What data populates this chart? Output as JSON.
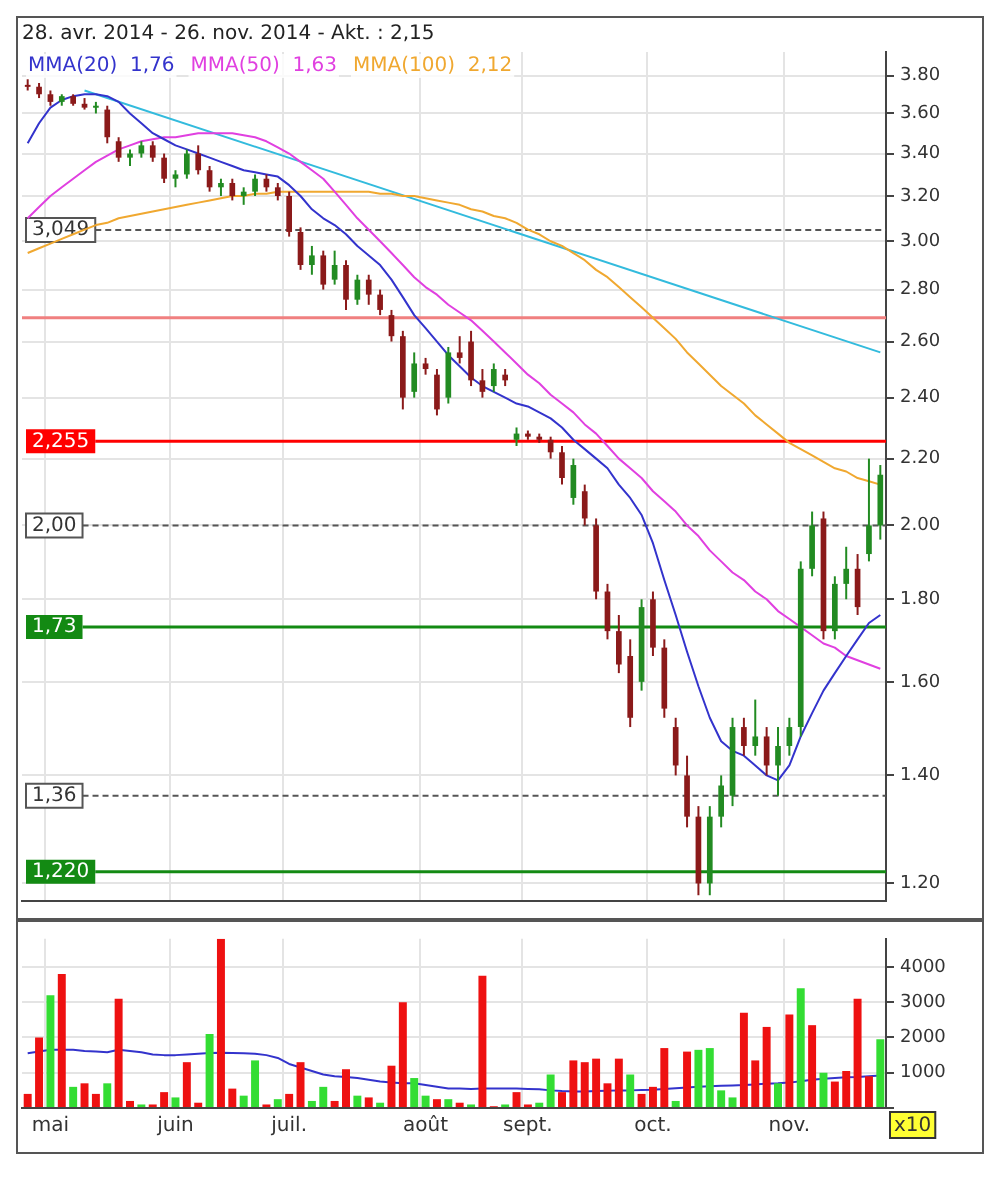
{
  "chart_data": [
    {
      "type": "candlestick",
      "title": "28. avr. 2014 - 26. nov. 2014 - Akt. : 2,15",
      "log": true,
      "grid": true,
      "legend": "top left",
      "tick_labels": "y",
      "ohlc": [
        [
          3.75,
          3.78,
          3.72,
          3.74
        ],
        [
          3.74,
          3.76,
          3.68,
          3.7
        ],
        [
          3.7,
          3.72,
          3.64,
          3.66
        ],
        [
          3.66,
          3.7,
          3.64,
          3.69
        ],
        [
          3.69,
          3.7,
          3.64,
          3.65
        ],
        [
          3.65,
          3.68,
          3.62,
          3.63
        ],
        [
          3.63,
          3.66,
          3.6,
          3.64
        ],
        [
          3.62,
          3.64,
          3.45,
          3.48
        ],
        [
          3.46,
          3.48,
          3.36,
          3.38
        ],
        [
          3.38,
          3.42,
          3.34,
          3.4
        ],
        [
          3.4,
          3.46,
          3.38,
          3.44
        ],
        [
          3.44,
          3.46,
          3.36,
          3.38
        ],
        [
          3.38,
          3.4,
          3.26,
          3.28
        ],
        [
          3.28,
          3.32,
          3.24,
          3.3
        ],
        [
          3.3,
          3.42,
          3.28,
          3.4
        ],
        [
          3.4,
          3.44,
          3.3,
          3.32
        ],
        [
          3.32,
          3.34,
          3.22,
          3.24
        ],
        [
          3.24,
          3.28,
          3.2,
          3.26
        ],
        [
          3.26,
          3.28,
          3.18,
          3.2
        ],
        [
          3.2,
          3.24,
          3.16,
          3.22
        ],
        [
          3.22,
          3.3,
          3.2,
          3.28
        ],
        [
          3.28,
          3.3,
          3.22,
          3.24
        ],
        [
          3.24,
          3.26,
          3.18,
          3.2
        ],
        [
          3.2,
          3.22,
          3.02,
          3.04
        ],
        [
          3.04,
          3.06,
          2.88,
          2.9
        ],
        [
          2.9,
          2.98,
          2.86,
          2.94
        ],
        [
          2.94,
          2.96,
          2.8,
          2.82
        ],
        [
          2.84,
          2.96,
          2.82,
          2.9
        ],
        [
          2.9,
          2.92,
          2.72,
          2.76
        ],
        [
          2.76,
          2.86,
          2.74,
          2.84
        ],
        [
          2.84,
          2.86,
          2.74,
          2.78
        ],
        [
          2.78,
          2.8,
          2.7,
          2.72
        ],
        [
          2.7,
          2.72,
          2.6,
          2.62
        ],
        [
          2.62,
          2.64,
          2.36,
          2.4
        ],
        [
          2.42,
          2.56,
          2.4,
          2.52
        ],
        [
          2.52,
          2.54,
          2.48,
          2.5
        ],
        [
          2.48,
          2.5,
          2.34,
          2.36
        ],
        [
          2.4,
          2.58,
          2.38,
          2.56
        ],
        [
          2.56,
          2.62,
          2.52,
          2.54
        ],
        [
          2.6,
          2.64,
          2.44,
          2.46
        ],
        [
          2.46,
          2.5,
          2.4,
          2.42
        ],
        [
          2.44,
          2.52,
          2.42,
          2.5
        ],
        [
          2.48,
          2.5,
          2.44,
          2.46
        ],
        [
          2.26,
          2.3,
          2.24,
          2.28
        ],
        [
          2.28,
          2.29,
          2.26,
          2.27
        ],
        [
          2.27,
          2.28,
          2.25,
          2.26
        ],
        [
          2.26,
          2.27,
          2.2,
          2.22
        ],
        [
          2.22,
          2.24,
          2.12,
          2.14
        ],
        [
          2.08,
          2.2,
          2.06,
          2.18
        ],
        [
          2.1,
          2.12,
          2.0,
          2.02
        ],
        [
          2.0,
          2.02,
          1.8,
          1.82
        ],
        [
          1.82,
          1.84,
          1.7,
          1.72
        ],
        [
          1.72,
          1.76,
          1.62,
          1.64
        ],
        [
          1.66,
          1.7,
          1.5,
          1.52
        ],
        [
          1.6,
          1.8,
          1.58,
          1.78
        ],
        [
          1.8,
          1.82,
          1.66,
          1.68
        ],
        [
          1.68,
          1.7,
          1.52,
          1.54
        ],
        [
          1.5,
          1.52,
          1.4,
          1.42
        ],
        [
          1.4,
          1.44,
          1.3,
          1.32
        ],
        [
          1.32,
          1.34,
          1.18,
          1.2
        ],
        [
          1.2,
          1.34,
          1.18,
          1.32
        ],
        [
          1.32,
          1.4,
          1.3,
          1.38
        ],
        [
          1.36,
          1.52,
          1.34,
          1.5
        ],
        [
          1.5,
          1.52,
          1.44,
          1.46
        ],
        [
          1.46,
          1.56,
          1.44,
          1.48
        ],
        [
          1.48,
          1.5,
          1.4,
          1.42
        ],
        [
          1.42,
          1.5,
          1.36,
          1.46
        ],
        [
          1.46,
          1.52,
          1.44,
          1.5
        ],
        [
          1.5,
          1.9,
          1.48,
          1.88
        ],
        [
          1.88,
          2.04,
          1.86,
          2.0
        ],
        [
          2.02,
          2.04,
          1.7,
          1.72
        ],
        [
          1.72,
          1.86,
          1.7,
          1.84
        ],
        [
          1.84,
          1.94,
          1.8,
          1.88
        ],
        [
          1.88,
          1.92,
          1.76,
          1.78
        ],
        [
          1.92,
          2.2,
          1.9,
          2.0
        ],
        [
          2.0,
          2.18,
          1.96,
          2.15
        ]
      ],
      "series": [
        {
          "type": "line",
          "name": "MMA(20)  1,76",
          "color": "#3333cc",
          "values": [
            3.45,
            3.55,
            3.63,
            3.67,
            3.69,
            3.7,
            3.7,
            3.69,
            3.66,
            3.6,
            3.55,
            3.5,
            3.47,
            3.44,
            3.42,
            3.4,
            3.38,
            3.36,
            3.34,
            3.32,
            3.31,
            3.3,
            3.29,
            3.25,
            3.2,
            3.14,
            3.1,
            3.07,
            3.03,
            2.98,
            2.94,
            2.9,
            2.84,
            2.77,
            2.7,
            2.65,
            2.6,
            2.55,
            2.51,
            2.47,
            2.44,
            2.42,
            2.4,
            2.38,
            2.37,
            2.35,
            2.33,
            2.3,
            2.26,
            2.23,
            2.2,
            2.17,
            2.12,
            2.08,
            2.03,
            1.95,
            1.85,
            1.76,
            1.67,
            1.59,
            1.52,
            1.47,
            1.45,
            1.44,
            1.42,
            1.4,
            1.39,
            1.42,
            1.48,
            1.53,
            1.58,
            1.62,
            1.66,
            1.7,
            1.74,
            1.76
          ]
        },
        {
          "type": "line",
          "name": "MMA(50)  1,63",
          "color": "#e040e0",
          "values": [
            3.1,
            3.15,
            3.2,
            3.24,
            3.28,
            3.32,
            3.36,
            3.39,
            3.42,
            3.44,
            3.46,
            3.47,
            3.48,
            3.48,
            3.49,
            3.5,
            3.5,
            3.5,
            3.5,
            3.49,
            3.48,
            3.46,
            3.43,
            3.4,
            3.36,
            3.32,
            3.28,
            3.22,
            3.16,
            3.1,
            3.05,
            3.0,
            2.95,
            2.9,
            2.85,
            2.81,
            2.78,
            2.74,
            2.71,
            2.68,
            2.64,
            2.6,
            2.56,
            2.52,
            2.48,
            2.45,
            2.41,
            2.38,
            2.35,
            2.31,
            2.28,
            2.24,
            2.2,
            2.17,
            2.14,
            2.1,
            2.07,
            2.04,
            2.0,
            1.97,
            1.93,
            1.9,
            1.87,
            1.85,
            1.82,
            1.8,
            1.77,
            1.75,
            1.73,
            1.71,
            1.69,
            1.68,
            1.66,
            1.65,
            1.64,
            1.63
          ]
        },
        {
          "type": "line",
          "name": "MMA(100)  2,12",
          "color": "#f0a830",
          "values": [
            2.95,
            2.97,
            2.99,
            3.01,
            3.03,
            3.05,
            3.07,
            3.08,
            3.1,
            3.11,
            3.12,
            3.13,
            3.14,
            3.15,
            3.16,
            3.17,
            3.18,
            3.19,
            3.2,
            3.2,
            3.21,
            3.21,
            3.22,
            3.22,
            3.22,
            3.22,
            3.22,
            3.22,
            3.22,
            3.22,
            3.22,
            3.21,
            3.21,
            3.2,
            3.2,
            3.19,
            3.18,
            3.17,
            3.16,
            3.14,
            3.13,
            3.11,
            3.1,
            3.08,
            3.05,
            3.03,
            3.0,
            2.98,
            2.95,
            2.92,
            2.88,
            2.85,
            2.81,
            2.77,
            2.73,
            2.69,
            2.65,
            2.61,
            2.56,
            2.52,
            2.48,
            2.44,
            2.41,
            2.38,
            2.34,
            2.31,
            2.28,
            2.25,
            2.23,
            2.21,
            2.19,
            2.17,
            2.16,
            2.14,
            2.13,
            2.12
          ]
        },
        {
          "type": "line",
          "color": "#33bbdd",
          "values": [
            null,
            null,
            null,
            null,
            null,
            3.72,
            null,
            null,
            null,
            null,
            null,
            null,
            null,
            null,
            null,
            null,
            null,
            null,
            null,
            null,
            null,
            null,
            null,
            null,
            null,
            null,
            null,
            null,
            null,
            null,
            null,
            null,
            null,
            null,
            null,
            null,
            null,
            null,
            null,
            null,
            null,
            null,
            null,
            null,
            null,
            null,
            null,
            null,
            null,
            null,
            null,
            null,
            null,
            null,
            null,
            null,
            null,
            null,
            null,
            null,
            null,
            null,
            null,
            null,
            null,
            null,
            null,
            null,
            null,
            null,
            null,
            null,
            null,
            null,
            null,
            2.56
          ]
        }
      ],
      "ylim": [
        1.17,
        3.93
      ],
      "yticks": [
        {
          "value": 1.2,
          "label": "1.20"
        },
        {
          "value": 1.4,
          "label": "1.40"
        },
        {
          "value": 1.6,
          "label": "1.60"
        },
        {
          "value": 1.8,
          "label": "1.80"
        },
        {
          "value": 2.0,
          "label": "2.00"
        },
        {
          "value": 2.2,
          "label": "2.20"
        },
        {
          "value": 2.4,
          "label": "2.40"
        },
        {
          "value": 2.6,
          "label": "2.60"
        },
        {
          "value": 2.8,
          "label": "2.80"
        },
        {
          "value": 3.0,
          "label": "3.00"
        },
        {
          "value": 3.2,
          "label": "3.20"
        },
        {
          "value": 3.4,
          "label": "3.40"
        },
        {
          "value": 3.6,
          "label": "3.60"
        },
        {
          "value": 3.8,
          "label": "3.80"
        }
      ],
      "ref_lines": [
        {
          "axis": "y",
          "value": 3.049,
          "label": "3,049",
          "color": "#555555",
          "line_style": "dashed"
        },
        {
          "axis": "y",
          "value": 2.69,
          "color": "#f08080"
        },
        {
          "axis": "y",
          "value": 2.255,
          "label": "2,255",
          "color": "#ff0000"
        },
        {
          "axis": "y",
          "value": 2.0,
          "label": "2,00",
          "color": "#555555",
          "line_style": "dashed"
        },
        {
          "axis": "y",
          "value": 1.73,
          "label": "1,73",
          "color": "#138a13"
        },
        {
          "axis": "y",
          "value": 1.36,
          "label": "1,36",
          "color": "#555555",
          "line_style": "dashed"
        },
        {
          "axis": "y",
          "value": 1.22,
          "label": "1,220",
          "color": "#138a13"
        }
      ]
    },
    {
      "type": "bar",
      "grid": true,
      "ylabel": "x10",
      "categories": [
        null,
        null,
        "mai",
        null,
        null,
        null,
        null,
        null,
        null,
        null,
        null,
        null,
        null,
        "juin",
        null,
        null,
        null,
        null,
        null,
        null,
        null,
        null,
        null,
        "juil.",
        null,
        null,
        null,
        null,
        null,
        null,
        null,
        null,
        null,
        null,
        null,
        "août",
        null,
        null,
        null,
        null,
        null,
        null,
        null,
        null,
        "sept.",
        null,
        null,
        null,
        null,
        null,
        null,
        null,
        null,
        null,
        null,
        "oct.",
        null,
        null,
        null,
        null,
        null,
        null,
        null,
        null,
        null,
        null,
        null,
        "nov.",
        null,
        null,
        null,
        null,
        null,
        null,
        null,
        null
      ],
      "series": [
        {
          "values": [
            400,
            2000,
            3200,
            3800,
            600,
            700,
            400,
            700,
            3100,
            200,
            100,
            100,
            450,
            300,
            1300,
            150,
            2100,
            4800,
            550,
            350,
            1350,
            100,
            250,
            400,
            1300,
            200,
            600,
            200,
            1100,
            350,
            300,
            150,
            1200,
            3000,
            850,
            350,
            250,
            250,
            150,
            100,
            3750,
            50,
            100,
            450,
            100,
            150,
            950,
            450,
            1350,
            1300,
            1400,
            700,
            1400,
            950,
            400,
            600,
            1700,
            200,
            1600,
            1650,
            1700,
            500,
            300,
            2700,
            1350,
            2300,
            700,
            2650,
            3400,
            2350,
            1000,
            750,
            1050,
            3100,
            900,
            1950
          ],
          "colors": [
            "#ee1111",
            "#ee1111",
            "#33dd33",
            "#ee1111",
            "#33dd33",
            "#ee1111",
            "#ee1111",
            "#33dd33",
            "#ee1111",
            "#ee1111",
            "#33dd33",
            "#ee1111",
            "#ee1111",
            "#33dd33",
            "#ee1111",
            "#ee1111",
            "#33dd33",
            "#ee1111",
            "#ee1111",
            "#33dd33",
            "#33dd33",
            "#ee1111",
            "#33dd33",
            "#ee1111",
            "#ee1111",
            "#33dd33",
            "#33dd33",
            "#ee1111",
            "#ee1111",
            "#33dd33",
            "#ee1111",
            "#33dd33",
            "#ee1111",
            "#ee1111",
            "#33dd33",
            "#33dd33",
            "#ee1111",
            "#33dd33",
            "#ee1111",
            "#33dd33",
            "#ee1111",
            "#ee1111",
            "#33dd33",
            "#ee1111",
            "#ee1111",
            "#33dd33",
            "#33dd33",
            "#ee1111",
            "#ee1111",
            "#ee1111",
            "#ee1111",
            "#ee1111",
            "#ee1111",
            "#33dd33",
            "#ee1111",
            "#ee1111",
            "#ee1111",
            "#33dd33",
            "#ee1111",
            "#33dd33",
            "#33dd33",
            "#33dd33",
            "#33dd33",
            "#ee1111",
            "#ee1111",
            "#ee1111",
            "#33dd33",
            "#ee1111",
            "#33dd33",
            "#ee1111",
            "#33dd33",
            "#ee1111",
            "#ee1111",
            "#ee1111",
            "#ee1111",
            "#33dd33"
          ]
        },
        {
          "type": "line",
          "color": "#3333cc",
          "values": [
            1550,
            1600,
            1650,
            1650,
            1650,
            1620,
            1600,
            1580,
            1650,
            1620,
            1580,
            1520,
            1500,
            1500,
            1520,
            1540,
            1560,
            1570,
            1560,
            1550,
            1540,
            1500,
            1420,
            1250,
            1150,
            1050,
            950,
            900,
            880,
            850,
            800,
            750,
            720,
            700,
            700,
            650,
            600,
            550,
            550,
            540,
            550,
            550,
            550,
            550,
            540,
            530,
            500,
            480,
            470,
            470,
            480,
            490,
            500,
            500,
            510,
            520,
            540,
            560,
            580,
            600,
            620,
            630,
            640,
            650,
            670,
            690,
            700,
            720,
            760,
            800,
            830,
            850,
            870,
            880,
            900,
            920
          ]
        }
      ],
      "ylim": [
        0,
        4800
      ],
      "yticks": [
        {
          "value": 0,
          "label": null
        },
        1000,
        2000,
        3000,
        4000
      ]
    }
  ]
}
